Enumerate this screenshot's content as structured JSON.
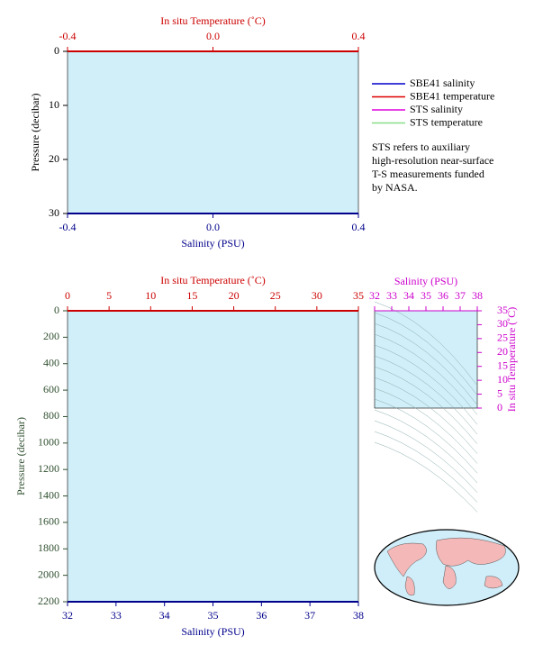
{
  "chart_data": [
    {
      "type": "line",
      "x_label": "Salinity (PSU)",
      "xlim": [
        -0.4,
        0.4
      ],
      "xticks": [
        -0.4,
        {
          "value": 0,
          "label": "0.0"
        },
        0.4
      ],
      "x2_label": "In situ Temperature (˚C)",
      "x2lim": [
        -0.4,
        0.4
      ],
      "x2ticks": [
        -0.4,
        {
          "value": 0,
          "label": "0.0"
        },
        0.4
      ],
      "y_label": "Pressure (decibar)",
      "ylim": [
        0,
        30
      ],
      "yticks": [
        0,
        10,
        20,
        30
      ],
      "y_inverted": true,
      "series": [
        {
          "name": "SBE41 salinity",
          "color": "#0000cc"
        },
        {
          "name": "SBE41 temperature",
          "color": "#dd0000"
        },
        {
          "name": "STS salinity",
          "color": "#dd00dd"
        },
        {
          "name": "STS temperature",
          "color": "#88dd88"
        }
      ],
      "note": [
        "STS refers to auxiliary",
        "high-resolution near-surface",
        "T-S measurements funded",
        "by NASA."
      ]
    },
    {
      "type": "line",
      "x_label": "Salinity (PSU)",
      "xlim": [
        32,
        38
      ],
      "xticks": [
        32,
        33,
        34,
        35,
        36,
        37,
        38
      ],
      "x2_label": "In situ Temperature (˚C)",
      "x2lim": [
        0,
        35
      ],
      "x2ticks": [
        0,
        5,
        10,
        15,
        20,
        25,
        30,
        35
      ],
      "y_label": "Pressure (decibar)",
      "ylim": [
        0,
        2200
      ],
      "yticks": [
        0,
        200,
        400,
        600,
        800,
        1000,
        1200,
        1400,
        1600,
        1800,
        2000,
        2200
      ],
      "y_inverted": true
    },
    {
      "type": "scatter",
      "x_label": "Salinity (PSU)",
      "xlim": [
        32,
        38
      ],
      "xticks": [
        32,
        33,
        34,
        35,
        36,
        37,
        38
      ],
      "y_label": "In situ Temperature (˚C)",
      "ylim": [
        0,
        35
      ],
      "yticks": [
        0,
        5,
        10,
        15,
        20,
        25,
        30,
        35
      ]
    }
  ]
}
